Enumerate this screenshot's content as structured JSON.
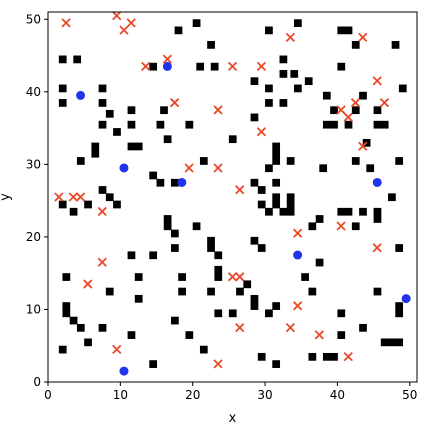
{
  "chart_data": {
    "type": "scatter",
    "title": "",
    "xlabel": "x",
    "ylabel": "y",
    "xlim": [
      0,
      51
    ],
    "ylim": [
      0,
      51
    ],
    "xticks": [
      0,
      10,
      20,
      30,
      40,
      50
    ],
    "yticks": [
      0,
      10,
      20,
      30,
      40,
      50
    ],
    "grid": false,
    "obstacle_color": "#000000",
    "colors": {
      "circle": "#2233ee",
      "cross": "#e8492a"
    },
    "obstacles": [
      [
        1.5,
        44
      ],
      [
        3.5,
        44
      ],
      [
        14,
        43
      ],
      [
        17.5,
        48
      ],
      [
        20,
        49
      ],
      [
        22,
        46
      ],
      [
        20.5,
        43
      ],
      [
        22.5,
        43
      ],
      [
        30,
        48
      ],
      [
        34,
        49
      ],
      [
        32,
        44
      ],
      [
        32,
        42
      ],
      [
        33.5,
        42
      ],
      [
        35.5,
        41
      ],
      [
        40,
        48
      ],
      [
        41,
        48
      ],
      [
        42,
        46
      ],
      [
        40,
        43
      ],
      [
        47.5,
        46
      ],
      [
        48.5,
        40
      ],
      [
        1.5,
        40
      ],
      [
        1.5,
        38
      ],
      [
        7,
        40
      ],
      [
        7,
        38
      ],
      [
        8,
        36.5
      ],
      [
        7,
        35
      ],
      [
        9,
        34
      ],
      [
        11,
        37
      ],
      [
        11,
        35
      ],
      [
        15.5,
        37
      ],
      [
        15,
        35
      ],
      [
        16,
        33
      ],
      [
        19,
        35
      ],
      [
        28,
        41
      ],
      [
        28,
        36
      ],
      [
        30,
        40
      ],
      [
        30,
        38
      ],
      [
        32,
        38
      ],
      [
        34,
        40
      ],
      [
        38,
        39
      ],
      [
        39,
        37
      ],
      [
        38,
        35
      ],
      [
        39,
        35
      ],
      [
        43,
        39
      ],
      [
        42,
        37
      ],
      [
        41,
        35
      ],
      [
        45,
        35
      ],
      [
        46,
        35
      ],
      [
        43.5,
        32.5
      ],
      [
        45,
        37
      ],
      [
        4,
        30
      ],
      [
        6,
        32
      ],
      [
        6,
        31
      ],
      [
        11,
        32
      ],
      [
        12,
        32
      ],
      [
        14,
        28
      ],
      [
        15,
        27
      ],
      [
        17,
        27
      ],
      [
        21,
        30
      ],
      [
        25,
        33
      ],
      [
        31,
        32
      ],
      [
        31,
        31
      ],
      [
        31,
        30
      ],
      [
        30,
        29
      ],
      [
        33,
        30
      ],
      [
        37.5,
        29
      ],
      [
        42,
        30
      ],
      [
        44,
        29
      ],
      [
        48,
        30
      ],
      [
        7,
        26
      ],
      [
        8,
        25
      ],
      [
        9,
        24
      ],
      [
        1.5,
        24
      ],
      [
        3,
        23
      ],
      [
        5,
        24
      ],
      [
        16,
        22
      ],
      [
        16,
        21
      ],
      [
        17,
        20
      ],
      [
        17,
        18
      ],
      [
        20,
        21
      ],
      [
        22,
        19
      ],
      [
        22,
        18
      ],
      [
        23,
        17
      ],
      [
        23,
        15
      ],
      [
        23,
        14
      ],
      [
        28,
        19
      ],
      [
        29,
        18
      ],
      [
        28,
        27
      ],
      [
        29,
        26
      ],
      [
        29,
        24
      ],
      [
        31,
        27
      ],
      [
        31,
        25
      ],
      [
        33,
        25
      ],
      [
        33,
        24
      ],
      [
        31,
        24
      ],
      [
        32,
        23
      ],
      [
        33,
        23
      ],
      [
        30,
        23
      ],
      [
        37,
        22
      ],
      [
        36,
        21
      ],
      [
        40,
        23
      ],
      [
        41,
        23
      ],
      [
        43,
        23
      ],
      [
        42,
        21
      ],
      [
        45,
        23
      ],
      [
        45,
        22
      ],
      [
        47,
        25
      ],
      [
        48,
        18
      ],
      [
        11,
        17
      ],
      [
        14,
        17
      ],
      [
        12,
        14
      ],
      [
        12,
        11
      ],
      [
        18,
        14
      ],
      [
        18,
        12
      ],
      [
        22,
        12
      ],
      [
        23,
        9
      ],
      [
        25,
        9
      ],
      [
        26,
        12
      ],
      [
        27,
        13
      ],
      [
        28,
        11
      ],
      [
        28,
        10
      ],
      [
        30,
        9
      ],
      [
        31,
        10
      ],
      [
        35,
        14
      ],
      [
        36,
        12
      ],
      [
        37,
        16
      ],
      [
        36,
        3
      ],
      [
        38,
        3
      ],
      [
        39,
        3
      ],
      [
        40,
        9
      ],
      [
        40,
        6
      ],
      [
        43,
        7
      ],
      [
        45,
        12
      ],
      [
        46,
        5
      ],
      [
        47,
        5
      ],
      [
        48,
        5
      ],
      [
        48,
        9
      ],
      [
        48,
        10
      ],
      [
        2,
        14
      ],
      [
        2,
        10
      ],
      [
        2,
        9
      ],
      [
        3,
        8
      ],
      [
        4,
        7
      ],
      [
        5,
        5
      ],
      [
        7,
        7
      ],
      [
        8,
        12
      ],
      [
        11,
        6
      ],
      [
        17,
        8
      ],
      [
        19,
        6
      ],
      [
        21,
        4
      ],
      [
        14,
        2
      ],
      [
        29,
        3
      ],
      [
        31,
        2
      ],
      [
        1.5,
        4
      ]
    ],
    "series": [
      {
        "marker": "circle",
        "points": [
          [
            4.5,
            39.5
          ],
          [
            10.5,
            29.5
          ],
          [
            18.5,
            27.5
          ],
          [
            16.5,
            43.5
          ],
          [
            34.5,
            17.5
          ],
          [
            45.5,
            27.5
          ],
          [
            49.5,
            11.5
          ],
          [
            10.5,
            1.5
          ]
        ]
      },
      {
        "marker": "cross",
        "points": [
          [
            2.5,
            49.5
          ],
          [
            9.5,
            50.5
          ],
          [
            10.5,
            48.5
          ],
          [
            11.5,
            49.5
          ],
          [
            13.5,
            43.5
          ],
          [
            16.5,
            44.5
          ],
          [
            17.5,
            38.5
          ],
          [
            23.5,
            37.5
          ],
          [
            25.5,
            43.5
          ],
          [
            29.5,
            43.5
          ],
          [
            29.5,
            34.5
          ],
          [
            33.5,
            47.5
          ],
          [
            40.5,
            37.5
          ],
          [
            41.5,
            36.5
          ],
          [
            42.5,
            38.5
          ],
          [
            43.5,
            47.5
          ],
          [
            45.5,
            41.5
          ],
          [
            46.5,
            38.5
          ],
          [
            43.5,
            32.5
          ],
          [
            1.5,
            25.5
          ],
          [
            3.5,
            25.5
          ],
          [
            4.5,
            25.5
          ],
          [
            7.5,
            23.5
          ],
          [
            19.5,
            29.5
          ],
          [
            23.5,
            29.5
          ],
          [
            26.5,
            26.5
          ],
          [
            34.5,
            20.5
          ],
          [
            40.5,
            21.5
          ],
          [
            45.5,
            18.5
          ],
          [
            7.5,
            16.5
          ],
          [
            5.5,
            13.5
          ],
          [
            25.5,
            14.5
          ],
          [
            26.5,
            14.5
          ],
          [
            26.5,
            7.5
          ],
          [
            34.5,
            10.5
          ],
          [
            33.5,
            7.5
          ],
          [
            37.5,
            6.5
          ],
          [
            41.5,
            3.5
          ],
          [
            9.5,
            4.5
          ],
          [
            23.5,
            2.5
          ]
        ]
      }
    ]
  }
}
